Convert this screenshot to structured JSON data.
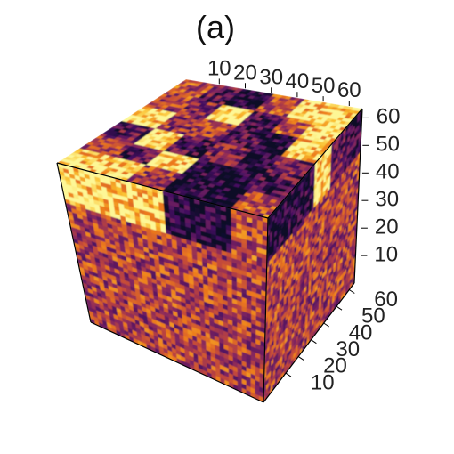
{
  "chart_data": {
    "type": "heatmap",
    "subtype": "3d-volume-cube",
    "title": "(a)",
    "colormap": "inferno",
    "axes": {
      "top": {
        "ticks": [
          10,
          20,
          30,
          40,
          50,
          60
        ],
        "range": [
          1,
          64
        ]
      },
      "right_upper": {
        "ticks": [
          10,
          20,
          30,
          40,
          50,
          60
        ],
        "range": [
          1,
          64
        ]
      },
      "right_lower": {
        "ticks": [
          10,
          20,
          30,
          40,
          50,
          60
        ],
        "range": [
          1,
          64
        ]
      }
    },
    "top_face_pattern": {
      "rows": 6,
      "cols": 6,
      "levels": [
        [
          0.55,
          0.25,
          0.05,
          0.55,
          0.95,
          0.95
        ],
        [
          0.5,
          0.4,
          0.95,
          0.2,
          0.6,
          0.95
        ],
        [
          0.95,
          0.45,
          0.5,
          0.2,
          0.05,
          0.95
        ],
        [
          0.25,
          0.95,
          0.2,
          0.35,
          0.05,
          0.3
        ],
        [
          0.5,
          0.25,
          0.95,
          0.1,
          0.05,
          0.2
        ],
        [
          0.95,
          0.95,
          0.5,
          0.05,
          0.05,
          0.55
        ]
      ]
    },
    "front_face_top_band": [
      0.95,
      0.95,
      0.95,
      0.05,
      0.05,
      0.55
    ],
    "right_face_top_band": [
      0.05,
      0.05,
      0.1,
      0.95,
      0.3,
      0.15
    ]
  }
}
